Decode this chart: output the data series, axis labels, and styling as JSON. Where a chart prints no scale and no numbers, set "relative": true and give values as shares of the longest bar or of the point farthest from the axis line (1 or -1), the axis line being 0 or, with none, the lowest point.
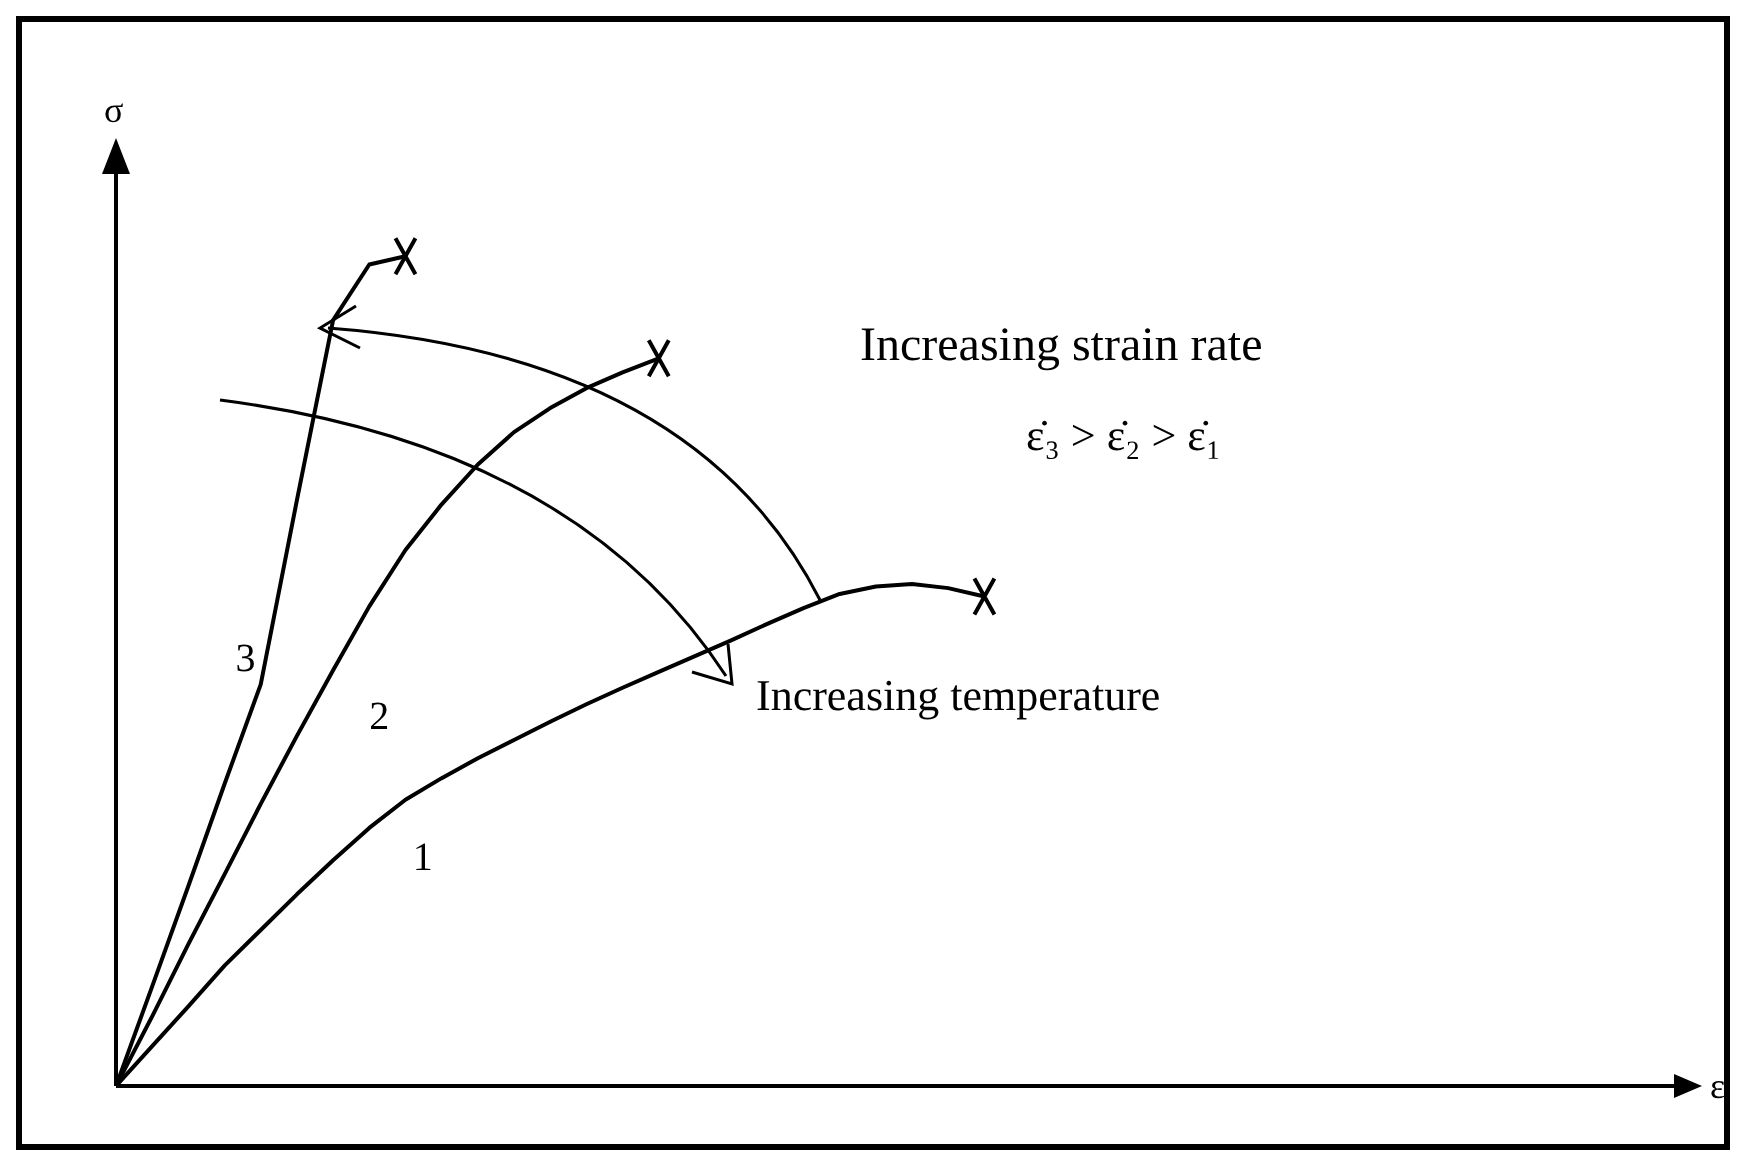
{
  "chart_data": {
    "type": "line",
    "relative": true,
    "xlabel": "ε",
    "ylabel": "σ",
    "line_style": "solid",
    "marker": "none",
    "categories": [
      null,
      null,
      null,
      null,
      null,
      null,
      null,
      null,
      null,
      null,
      null,
      null,
      null,
      null,
      null,
      null,
      null,
      null,
      null,
      null,
      null,
      null,
      null,
      null,
      null,
      null,
      null,
      null,
      null,
      null,
      null,
      null,
      null,
      null,
      null,
      null,
      null,
      null,
      null,
      null,
      null,
      null,
      null,
      null
    ],
    "series": [
      {
        "name": "1",
        "color": "#000000",
        "values": [
          0,
          0.048,
          0.096,
          0.145,
          0.188,
          0.231,
          0.272,
          0.311,
          0.345,
          0.371,
          0.395,
          0.417,
          0.439,
          0.46,
          0.48,
          0.499,
          0.518,
          0.537,
          0.557,
          0.576,
          0.593,
          0.602,
          0.605,
          0.6,
          0.59,
          null,
          null,
          null,
          null,
          null,
          null,
          null,
          null,
          null,
          null,
          null,
          null,
          null,
          null,
          null,
          null,
          null,
          null,
          null
        ]
      },
      {
        "name": "2",
        "color": "#000000",
        "values": [
          0,
          0.084,
          0.171,
          0.255,
          0.34,
          0.422,
          0.501,
          0.578,
          0.646,
          0.701,
          0.749,
          0.788,
          0.817,
          0.841,
          0.86,
          0.877,
          null,
          null,
          null,
          null,
          null,
          null,
          null,
          null,
          null,
          null,
          null,
          null,
          null,
          null,
          null,
          null,
          null,
          null,
          null,
          null,
          null,
          null,
          null,
          null,
          null,
          null,
          null,
          null
        ]
      },
      {
        "name": "3",
        "color": "#000000",
        "values": [
          0,
          0.12,
          0.241,
          0.364,
          0.484,
          0.706,
          0.923,
          0.99,
          1,
          null,
          null,
          null,
          null,
          null,
          null,
          null,
          null,
          null,
          null,
          null,
          null,
          null,
          null,
          null,
          null,
          null,
          null,
          null,
          null,
          null,
          null,
          null,
          null,
          null,
          null,
          null,
          null,
          null,
          null,
          null,
          null,
          null,
          null,
          null
        ]
      }
    ],
    "annotations": [
      "Increasing strain rate",
      "ε̇₃ > ε̇₂ > ε̇₁",
      "Increasing temperature"
    ]
  }
}
